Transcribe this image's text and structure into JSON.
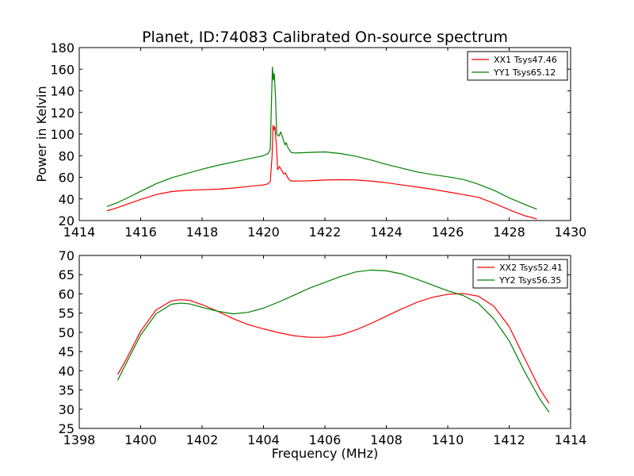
{
  "chart_data": [
    {
      "type": "line",
      "title": "Planet, ID:74083 Calibrated On-source spectrum",
      "xlabel": "",
      "ylabel": "Power in Kelvin",
      "xlim": [
        1414,
        1430
      ],
      "ylim": [
        20,
        180
      ],
      "xticks": [
        1414,
        1416,
        1418,
        1420,
        1422,
        1424,
        1426,
        1428,
        1430
      ],
      "yticks": [
        20,
        40,
        60,
        80,
        100,
        120,
        140,
        160,
        180
      ],
      "legend": "top-right",
      "series": [
        {
          "name": "XX1 Tsys47.46",
          "color": "#ff0000",
          "points": [
            [
              1414.9,
              29
            ],
            [
              1415.2,
              31.5
            ],
            [
              1415.5,
              34.5
            ],
            [
              1416,
              39.5
            ],
            [
              1416.5,
              44
            ],
            [
              1417,
              46.8
            ],
            [
              1417.5,
              48
            ],
            [
              1418,
              48.5
            ],
            [
              1418.5,
              49
            ],
            [
              1419,
              50
            ],
            [
              1419.5,
              51.5
            ],
            [
              1420,
              53
            ],
            [
              1420.15,
              54
            ],
            [
              1420.22,
              56
            ],
            [
              1420.28,
              80
            ],
            [
              1420.31,
              108
            ],
            [
              1420.34,
              104
            ],
            [
              1420.37,
              107
            ],
            [
              1420.42,
              90
            ],
            [
              1420.46,
              67
            ],
            [
              1420.52,
              70
            ],
            [
              1420.58,
              67
            ],
            [
              1420.66,
              63
            ],
            [
              1420.72,
              64
            ],
            [
              1420.78,
              60
            ],
            [
              1420.86,
              57
            ],
            [
              1421,
              56.5
            ],
            [
              1421.5,
              56.8
            ],
            [
              1422,
              57.5
            ],
            [
              1422.5,
              57.8
            ],
            [
              1423,
              57.5
            ],
            [
              1423.5,
              56.5
            ],
            [
              1424,
              55
            ],
            [
              1424.5,
              53
            ],
            [
              1425,
              51
            ],
            [
              1425.5,
              49
            ],
            [
              1426,
              46.5
            ],
            [
              1426.5,
              44
            ],
            [
              1427,
              41.5
            ],
            [
              1427.5,
              36
            ],
            [
              1428,
              30
            ],
            [
              1428.5,
              24.5
            ],
            [
              1428.9,
              21.5
            ]
          ]
        },
        {
          "name": "YY1 Tsys65.12",
          "color": "#008000",
          "points": [
            [
              1414.9,
              33
            ],
            [
              1415.2,
              36
            ],
            [
              1415.5,
              40
            ],
            [
              1416,
              47
            ],
            [
              1416.5,
              54
            ],
            [
              1417,
              59.5
            ],
            [
              1417.5,
              63.5
            ],
            [
              1418,
              67.5
            ],
            [
              1418.5,
              71
            ],
            [
              1419,
              74
            ],
            [
              1419.5,
              77
            ],
            [
              1420,
              80
            ],
            [
              1420.15,
              82
            ],
            [
              1420.22,
              86
            ],
            [
              1420.26,
              130
            ],
            [
              1420.29,
              162
            ],
            [
              1420.32,
              150
            ],
            [
              1420.35,
              156
            ],
            [
              1420.39,
              135
            ],
            [
              1420.43,
              100
            ],
            [
              1420.5,
              98
            ],
            [
              1420.56,
              102
            ],
            [
              1420.62,
              97
            ],
            [
              1420.7,
              90
            ],
            [
              1420.74,
              92
            ],
            [
              1420.8,
              87
            ],
            [
              1420.9,
              83
            ],
            [
              1421,
              82.5
            ],
            [
              1421.5,
              83
            ],
            [
              1422,
              83.5
            ],
            [
              1422.5,
              82
            ],
            [
              1423,
              79.5
            ],
            [
              1423.5,
              76
            ],
            [
              1424,
              72
            ],
            [
              1424.5,
              68.5
            ],
            [
              1425,
              65
            ],
            [
              1425.5,
              62.5
            ],
            [
              1426,
              60.5
            ],
            [
              1426.5,
              58
            ],
            [
              1426.85,
              55
            ],
            [
              1427,
              53.5
            ],
            [
              1427.5,
              48
            ],
            [
              1428,
              41
            ],
            [
              1428.5,
              35
            ],
            [
              1428.9,
              30.5
            ]
          ]
        }
      ]
    },
    {
      "type": "line",
      "title": "",
      "xlabel": "Frequency (MHz)",
      "ylabel": "",
      "xlim": [
        1398,
        1414
      ],
      "ylim": [
        25,
        70
      ],
      "xticks": [
        1398,
        1400,
        1402,
        1404,
        1406,
        1408,
        1410,
        1412,
        1414
      ],
      "yticks": [
        25,
        30,
        35,
        40,
        45,
        50,
        55,
        60,
        65,
        70
      ],
      "legend": "top-right",
      "series": [
        {
          "name": "XX2 Tsys52.41",
          "color": "#ff0000",
          "points": [
            [
              1399.25,
              39
            ],
            [
              1399.5,
              42.5
            ],
            [
              1400,
              50.3
            ],
            [
              1400.5,
              55.8
            ],
            [
              1401,
              58.2
            ],
            [
              1401.3,
              58.5
            ],
            [
              1401.6,
              58.3
            ],
            [
              1402,
              57.2
            ],
            [
              1402.5,
              55.5
            ],
            [
              1403,
              53.6
            ],
            [
              1403.5,
              52
            ],
            [
              1404,
              50.9
            ],
            [
              1404.5,
              49.9
            ],
            [
              1405,
              49.1
            ],
            [
              1405.5,
              48.7
            ],
            [
              1406,
              48.7
            ],
            [
              1406.5,
              49.3
            ],
            [
              1407,
              50.6
            ],
            [
              1407.5,
              52.3
            ],
            [
              1408,
              54.2
            ],
            [
              1408.5,
              56.1
            ],
            [
              1409,
              57.8
            ],
            [
              1409.5,
              59.1
            ],
            [
              1410,
              59.9
            ],
            [
              1410.5,
              60.1
            ],
            [
              1411,
              59.4
            ],
            [
              1411.5,
              56.8
            ],
            [
              1412,
              51.5
            ],
            [
              1412.5,
              43.3
            ],
            [
              1413,
              35.2
            ],
            [
              1413.3,
              31.5
            ]
          ]
        },
        {
          "name": "YY2 Tsys56.35",
          "color": "#008000",
          "points": [
            [
              1399.25,
              37.5
            ],
            [
              1399.5,
              41.5
            ],
            [
              1400,
              49.3
            ],
            [
              1400.5,
              54.8
            ],
            [
              1401,
              57.3
            ],
            [
              1401.3,
              57.6
            ],
            [
              1401.6,
              57.4
            ],
            [
              1402,
              56.5
            ],
            [
              1402.5,
              55.5
            ],
            [
              1403,
              54.8
            ],
            [
              1403.5,
              55.2
            ],
            [
              1404,
              56.3
            ],
            [
              1404.5,
              57.9
            ],
            [
              1405,
              59.7
            ],
            [
              1405.5,
              61.5
            ],
            [
              1406,
              63
            ],
            [
              1406.5,
              64.5
            ],
            [
              1407,
              65.7
            ],
            [
              1407.5,
              66.2
            ],
            [
              1408,
              66
            ],
            [
              1408.5,
              65.2
            ],
            [
              1409,
              63.8
            ],
            [
              1409.5,
              62.3
            ],
            [
              1410,
              60.8
            ],
            [
              1410.5,
              59.6
            ],
            [
              1411,
              57.5
            ],
            [
              1411.5,
              53.5
            ],
            [
              1412,
              47.8
            ],
            [
              1412.5,
              39.8
            ],
            [
              1413,
              32.6
            ],
            [
              1413.3,
              29.2
            ]
          ]
        }
      ]
    }
  ]
}
